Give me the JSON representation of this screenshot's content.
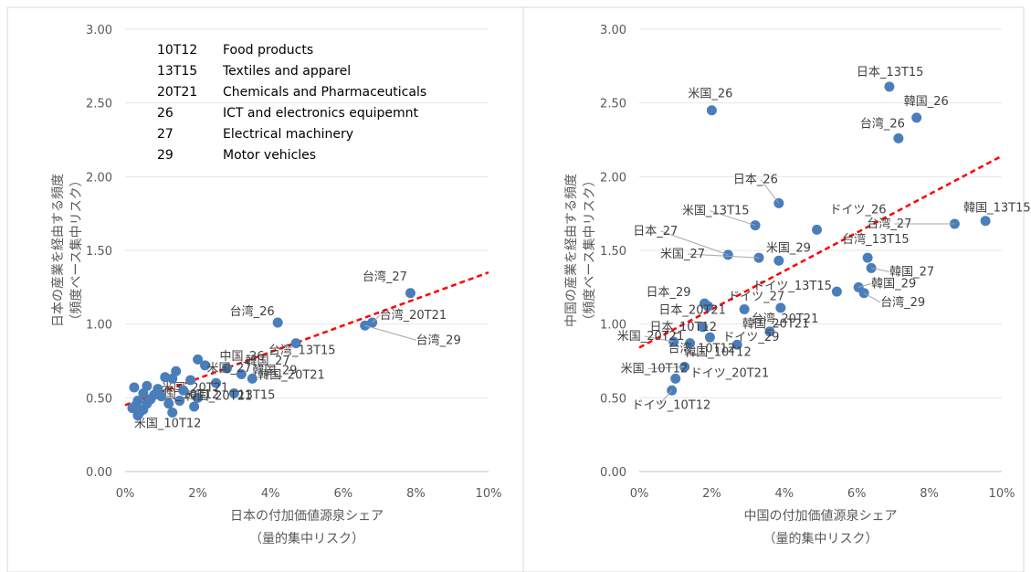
{
  "chart_data": [
    {
      "type": "scatter",
      "xlabel": [
        "日本の付加価値源泉シェア",
        "（量的集中リスク）"
      ],
      "ylabel": [
        "日本の産業を経由する頻度",
        "（頻度ベース集中リスク）"
      ],
      "xlim": [
        0,
        10
      ],
      "ylim": [
        0,
        3
      ],
      "xticks": [
        "0%",
        "2%",
        "4%",
        "6%",
        "8%",
        "10%"
      ],
      "yticks": [
        "0.00",
        "0.50",
        "1.00",
        "1.50",
        "2.00",
        "2.50",
        "3.00"
      ],
      "trendline": {
        "x0": 0,
        "y0": 0.45,
        "x1": 10,
        "y1": 1.35,
        "color": "#ff0000"
      },
      "point_color": "#4a7ebb",
      "legend": [
        {
          "code": "10T12",
          "name": "Food products"
        },
        {
          "code": "13T15",
          "name": "Textiles and apparel"
        },
        {
          "code": "20T21",
          "name": "Chemicals and Pharmaceuticals"
        },
        {
          "code": "26",
          "name": "ICT and electronics equipemnt"
        },
        {
          "code": "27",
          "name": "Electrical machinery"
        },
        {
          "code": "29",
          "name": "Motor vehicles"
        }
      ],
      "points": [
        {
          "x": 7.85,
          "y": 1.21,
          "label": "台湾_27"
        },
        {
          "x": 4.2,
          "y": 1.01,
          "label": "台湾_26"
        },
        {
          "x": 6.8,
          "y": 1.01,
          "label": "台湾_20T21"
        },
        {
          "x": 6.6,
          "y": 0.99,
          "label": "台湾_29"
        },
        {
          "x": 4.7,
          "y": 0.87,
          "label": "台湾_13T15"
        },
        {
          "x": 2.2,
          "y": 0.72,
          "label": "中国_26"
        },
        {
          "x": 2.8,
          "y": 0.7,
          "label": "韓国_27"
        },
        {
          "x": 3.2,
          "y": 0.66,
          "label": "韓国_29"
        },
        {
          "x": 3.5,
          "y": 0.63,
          "label": "韓国_20T21"
        },
        {
          "x": 2.5,
          "y": 0.6,
          "label": "米国_27"
        },
        {
          "x": 3.0,
          "y": 0.53,
          "label": "13T15"
        },
        {
          "x": 2.0,
          "y": 0.5,
          "label": "韓国_20T21"
        },
        {
          "x": 1.5,
          "y": 0.48,
          "label": "米国_20T21"
        },
        {
          "x": 1.2,
          "y": 0.46,
          "label": "中国_10T12"
        },
        {
          "x": 0.4,
          "y": 0.4,
          "label": "米国_10T12"
        },
        {
          "x": 2.0,
          "y": 0.76,
          "label": ""
        },
        {
          "x": 1.4,
          "y": 0.68,
          "label": ""
        },
        {
          "x": 1.1,
          "y": 0.64,
          "label": ""
        },
        {
          "x": 1.3,
          "y": 0.63,
          "label": ""
        },
        {
          "x": 1.8,
          "y": 0.62,
          "label": ""
        },
        {
          "x": 0.6,
          "y": 0.58,
          "label": ""
        },
        {
          "x": 0.25,
          "y": 0.57,
          "label": ""
        },
        {
          "x": 0.9,
          "y": 0.56,
          "label": ""
        },
        {
          "x": 1.6,
          "y": 0.55,
          "label": ""
        },
        {
          "x": 0.5,
          "y": 0.53,
          "label": ""
        },
        {
          "x": 0.8,
          "y": 0.52,
          "label": ""
        },
        {
          "x": 1.0,
          "y": 0.51,
          "label": ""
        },
        {
          "x": 0.7,
          "y": 0.49,
          "label": ""
        },
        {
          "x": 0.35,
          "y": 0.48,
          "label": ""
        },
        {
          "x": 0.6,
          "y": 0.46,
          "label": ""
        },
        {
          "x": 0.3,
          "y": 0.45,
          "label": ""
        },
        {
          "x": 0.2,
          "y": 0.43,
          "label": ""
        },
        {
          "x": 0.5,
          "y": 0.42,
          "label": ""
        },
        {
          "x": 0.35,
          "y": 0.38,
          "label": ""
        },
        {
          "x": 1.9,
          "y": 0.44,
          "label": ""
        },
        {
          "x": 1.3,
          "y": 0.4,
          "label": ""
        }
      ]
    },
    {
      "type": "scatter",
      "xlabel": [
        "中国の付加価値源泉シェア",
        "（量的集中リスク）"
      ],
      "ylabel": [
        "中国の産業を経由する頻度",
        "（頻度ベース集中リスク）"
      ],
      "xlim": [
        0,
        10
      ],
      "ylim": [
        0,
        3
      ],
      "xticks": [
        "0%",
        "2%",
        "4%",
        "6%",
        "8%",
        "10%"
      ],
      "yticks": [
        "0.00",
        "0.50",
        "1.00",
        "1.50",
        "2.00",
        "2.50",
        "3.00"
      ],
      "trendline": {
        "x0": 0,
        "y0": 0.84,
        "x1": 10,
        "y1": 2.14,
        "color": "#ff0000"
      },
      "point_color": "#4a7ebb",
      "points": [
        {
          "x": 6.9,
          "y": 2.61,
          "label": "日本_13T15"
        },
        {
          "x": 2.0,
          "y": 2.45,
          "label": "米国_26"
        },
        {
          "x": 7.65,
          "y": 2.4,
          "label": "韓国_26"
        },
        {
          "x": 7.15,
          "y": 2.26,
          "label": "台湾_26"
        },
        {
          "x": 3.85,
          "y": 1.82,
          "label": "日本_26"
        },
        {
          "x": 3.2,
          "y": 1.67,
          "label": "米国_13T15"
        },
        {
          "x": 4.9,
          "y": 1.64,
          "label": "ドイツ_26"
        },
        {
          "x": 8.7,
          "y": 1.68,
          "label": "台湾_27"
        },
        {
          "x": 9.55,
          "y": 1.7,
          "label": "韓国_13T15"
        },
        {
          "x": 2.45,
          "y": 1.47,
          "label": "日本_27"
        },
        {
          "x": 3.3,
          "y": 1.45,
          "label": "米国_27"
        },
        {
          "x": 3.85,
          "y": 1.43,
          "label": "米国_29"
        },
        {
          "x": 6.3,
          "y": 1.45,
          "label": "台湾_13T15"
        },
        {
          "x": 6.4,
          "y": 1.38,
          "label": "韓国_27"
        },
        {
          "x": 5.45,
          "y": 1.22,
          "label": "ドイツ_13T15"
        },
        {
          "x": 6.05,
          "y": 1.25,
          "label": "韓国_29"
        },
        {
          "x": 6.2,
          "y": 1.21,
          "label": "台湾_29"
        },
        {
          "x": 1.8,
          "y": 1.14,
          "label": "日本_29"
        },
        {
          "x": 2.9,
          "y": 1.1,
          "label": "ドイツ_27"
        },
        {
          "x": 3.9,
          "y": 1.11,
          "label": "台湾_20T21"
        },
        {
          "x": 1.9,
          "y": 1.12,
          "label": "日本_20T21"
        },
        {
          "x": 1.75,
          "y": 0.98,
          "label": "日本_10T12"
        },
        {
          "x": 3.6,
          "y": 0.95,
          "label": "韓国_20T21"
        },
        {
          "x": 1.95,
          "y": 0.91,
          "label": "ドイツ_29"
        },
        {
          "x": 0.95,
          "y": 0.88,
          "label": "米国_20T21"
        },
        {
          "x": 2.7,
          "y": 0.86,
          "label": "韓国_10T12"
        },
        {
          "x": 1.4,
          "y": 0.87,
          "label": "台湾_10T12"
        },
        {
          "x": 1.25,
          "y": 0.71,
          "label": "米国_10T12"
        },
        {
          "x": 1.0,
          "y": 0.63,
          "label": "ドイツ_20T21"
        },
        {
          "x": 0.9,
          "y": 0.55,
          "label": "ドイツ_10T12"
        }
      ]
    }
  ]
}
